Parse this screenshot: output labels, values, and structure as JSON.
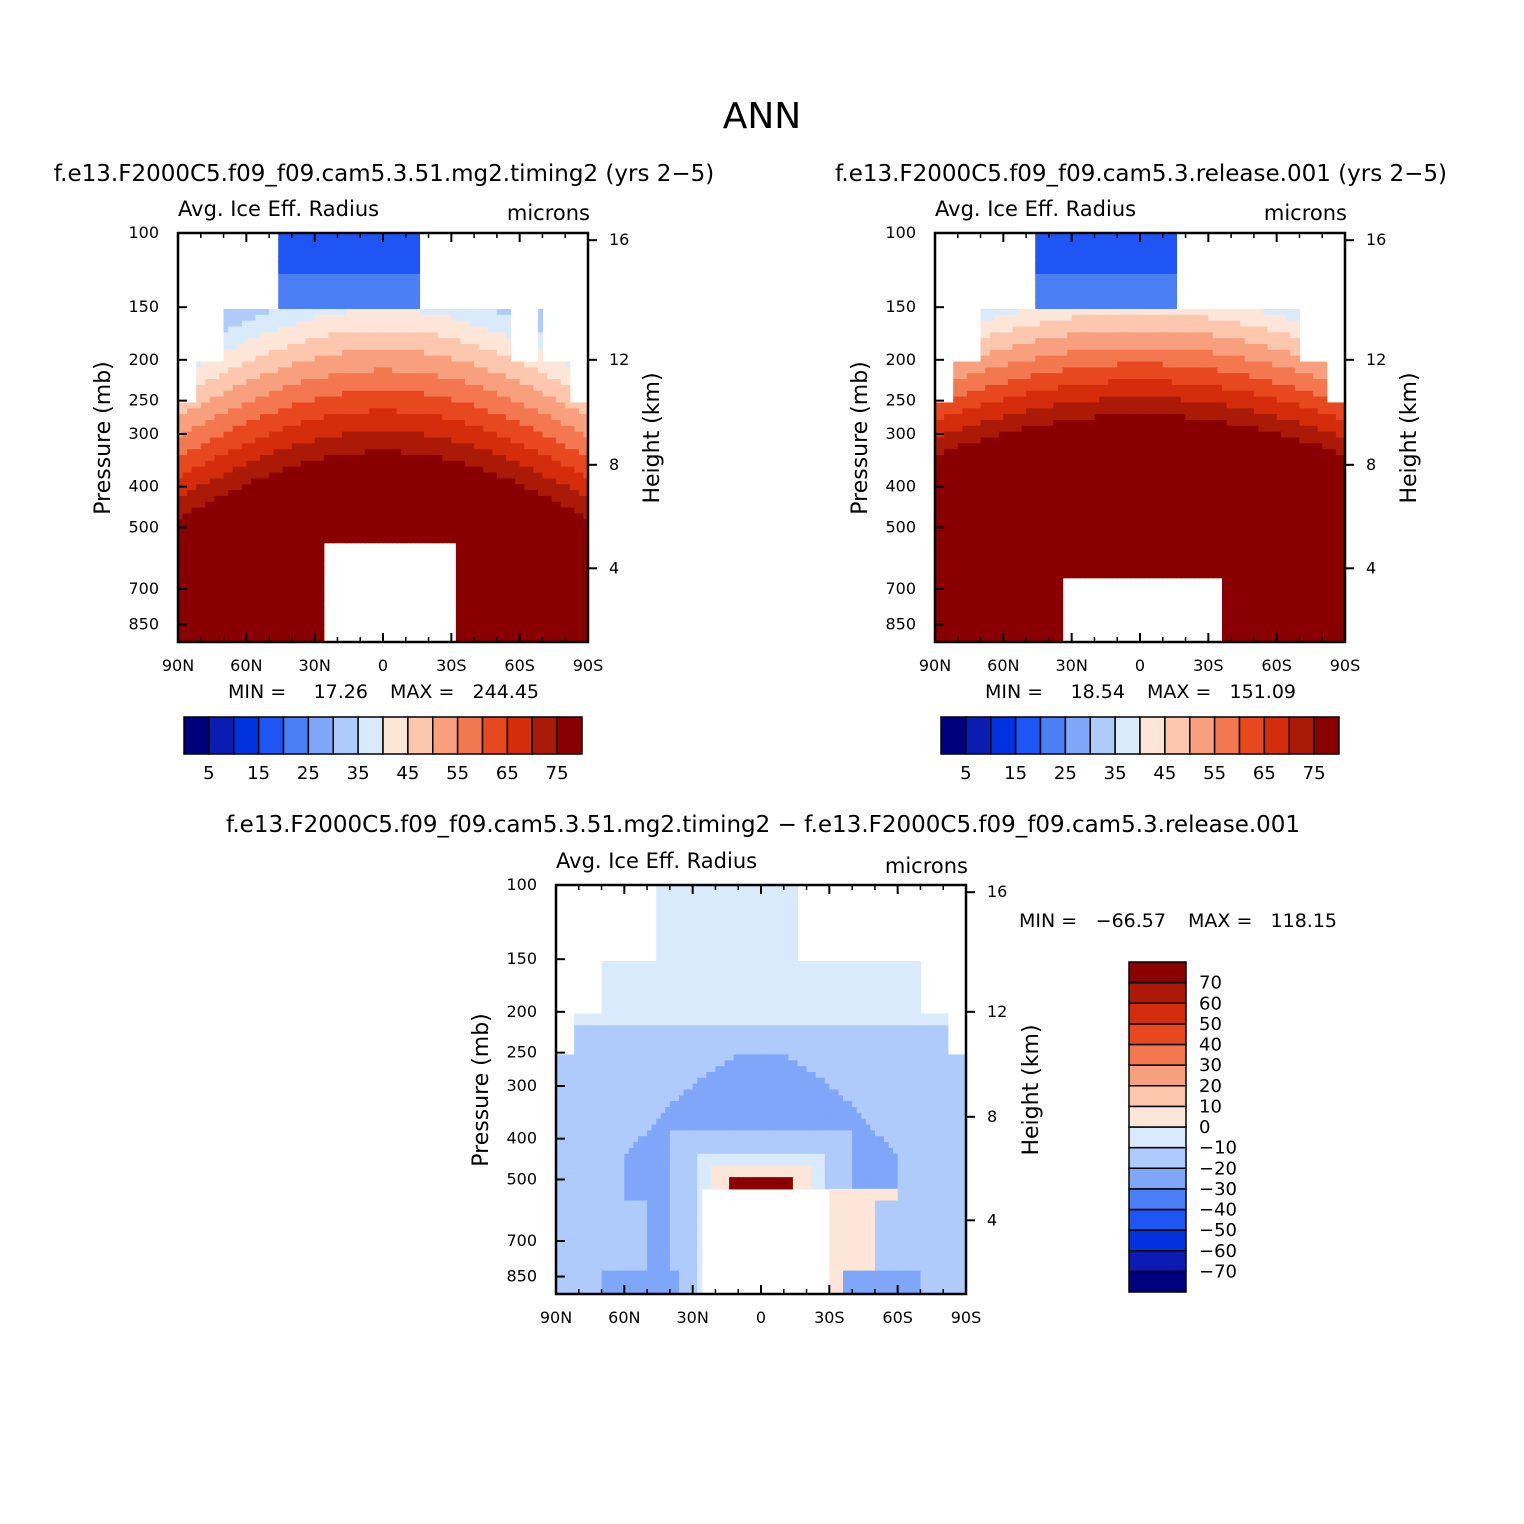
{
  "page_title": "ANN",
  "chart_data": [
    {
      "type": "heatmap",
      "id": "p1",
      "title": "f.e13.F2000C5.f09_f09.cam5.3.51.mg2.timing2 (yrs 2−5)",
      "subtitle_left": "Avg. Ice Eff. Radius",
      "subtitle_right": "microns",
      "ylabel": "Pressure (mb)",
      "ylabel_right": "Height (km)",
      "x_ticks": [
        "90N",
        "60N",
        "30N",
        "0",
        "30S",
        "60S",
        "90S"
      ],
      "p_ticks": [
        "100",
        "150",
        "200",
        "250",
        "300",
        "400",
        "500",
        "700",
        "850"
      ],
      "z_ticks": [
        "16",
        "12",
        "8",
        "4"
      ],
      "stats": {
        "min_label": "MIN =",
        "min": "17.26",
        "max_label": "MAX =",
        "max": "244.45"
      },
      "contour_levels": [
        5,
        10,
        15,
        20,
        25,
        30,
        35,
        40,
        45,
        50,
        55,
        60,
        65,
        70,
        75
      ],
      "colorbar_labels": [
        "5",
        "15",
        "25",
        "35",
        "45",
        "55",
        "65",
        "75"
      ],
      "fields": {
        "core_p": 330,
        "base_p": 640,
        "gradient": 0.075,
        "hole": [
          -33,
          27
        ],
        "hole_top_p": 550
      }
    },
    {
      "type": "heatmap",
      "id": "p2",
      "title": "f.e13.F2000C5.f09_f09.cam5.3.release.001 (yrs 2−5)",
      "subtitle_left": "Avg. Ice Eff. Radius",
      "subtitle_right": "microns",
      "ylabel": "Pressure (mb)",
      "ylabel_right": "Height (km)",
      "x_ticks": [
        "90N",
        "60N",
        "30N",
        "0",
        "30S",
        "60S",
        "90S"
      ],
      "p_ticks": [
        "100",
        "150",
        "200",
        "250",
        "300",
        "400",
        "500",
        "700",
        "850"
      ],
      "z_ticks": [
        "16",
        "12",
        "8",
        "4"
      ],
      "stats": {
        "min_label": "MIN =",
        "min": "18.54",
        "max_label": "MAX =",
        "max": "151.09"
      },
      "contour_levels": [
        5,
        10,
        15,
        20,
        25,
        30,
        35,
        40,
        45,
        50,
        55,
        60,
        65,
        70,
        75
      ],
      "colorbar_labels": [
        "5",
        "15",
        "25",
        "35",
        "45",
        "55",
        "65",
        "75"
      ],
      "fields": {
        "core_p": 270,
        "base_p": 430,
        "gradient": 0.09,
        "hole": [
          -37,
          34
        ],
        "hole_top_p": 650
      }
    },
    {
      "type": "heatmap",
      "id": "p3",
      "title": "f.e13.F2000C5.f09_f09.cam5.3.51.mg2.timing2 − f.e13.F2000C5.f09_f09.cam5.3.release.001",
      "subtitle_left": "Avg. Ice Eff. Radius",
      "subtitle_right": "microns",
      "ylabel": "Pressure (mb)",
      "ylabel_right": "Height (km)",
      "x_ticks": [
        "90N",
        "60N",
        "30N",
        "0",
        "30S",
        "60S",
        "90S"
      ],
      "p_ticks": [
        "100",
        "150",
        "200",
        "250",
        "300",
        "400",
        "500",
        "700",
        "850"
      ],
      "z_ticks": [
        "16",
        "12",
        "8",
        "4"
      ],
      "stats": {
        "min_label": "MIN =",
        "min": "−66.57",
        "max_label": "MAX =",
        "max": "118.15"
      },
      "contour_levels": [
        -70,
        -60,
        -50,
        -40,
        -30,
        -20,
        -10,
        0,
        10,
        20,
        30,
        40,
        50,
        60,
        70
      ],
      "colorbar_labels": [
        "70",
        "60",
        "50",
        "40",
        "30",
        "20",
        "10",
        "0",
        "−10",
        "−20",
        "−30",
        "−40",
        "−50",
        "−60",
        "−70"
      ],
      "fields": {
        "hole": [
          -30,
          27
        ],
        "hole_top_p": 530
      }
    }
  ],
  "palette": [
    "#00007f",
    "#0a1cb4",
    "#0033e0",
    "#1f55f5",
    "#4a7ff5",
    "#7fa6f8",
    "#aecbfb",
    "#d9eafd",
    "#fde6d8",
    "#fcc7ad",
    "#f8a07e",
    "#f3774f",
    "#e8481f",
    "#d42d0b",
    "#ab1a06",
    "#8a0000"
  ]
}
